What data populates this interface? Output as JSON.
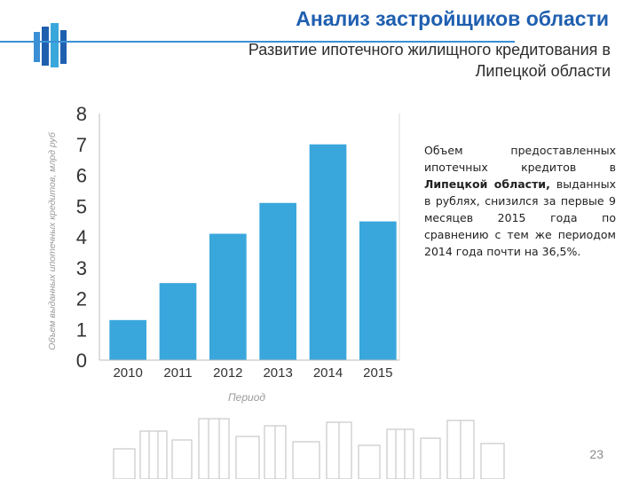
{
  "header": {
    "title": "Анализ застройщиков области",
    "subtitle_line1": "Развитие ипотечного жилищного кредитования в",
    "subtitle_line2": "Липецкой области"
  },
  "colors": {
    "bar": "#3aa7dc",
    "title": "#1f5fb0",
    "accent_line": "#3a8fd6"
  },
  "chart_data": {
    "type": "bar",
    "categories": [
      "2010",
      "2011",
      "2012",
      "2013",
      "2014",
      "2015"
    ],
    "values": [
      1.3,
      2.5,
      4.1,
      5.1,
      7.0,
      4.5
    ],
    "title": "",
    "xlabel": "Период",
    "ylabel": "Объем выданных ипотечных кредитов, млрд руб",
    "ylim": [
      0,
      8
    ],
    "yticks": [
      "0",
      "1",
      "2",
      "3",
      "4",
      "5",
      "6",
      "7",
      "8"
    ],
    "grid": false
  },
  "body": {
    "text_before": "Объем предоставленных ипотечных кредитов в ",
    "text_bold": "Липецкой области,",
    "text_after": " выданных в рублях, снизился за первые 9 месяцев 2015 года по сравнению с тем же периодом 2014 года почти на 36,5%."
  },
  "footer": {
    "page_number": "23"
  }
}
